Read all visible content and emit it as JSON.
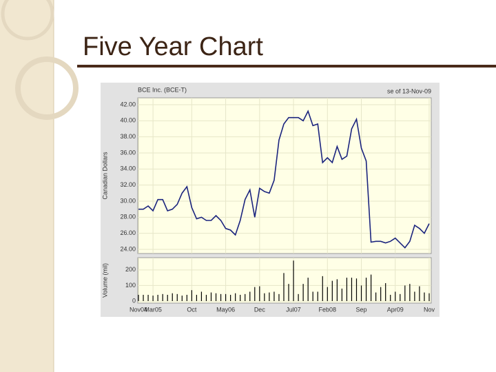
{
  "slide_title": "Five Year Chart",
  "chart_data": [
    {
      "type": "line",
      "title": "BCE Inc. (BCE-T)",
      "subtitle": "se of 13-Nov-09",
      "y_label": "Canadian Dollars",
      "color": "#1a237e",
      "grid": true,
      "ylim": [
        24,
        42
      ],
      "yticks": [
        {
          "value": 24,
          "label": "24.00"
        },
        {
          "value": 26,
          "label": "26.00"
        },
        {
          "value": 28,
          "label": "28.00"
        },
        {
          "value": 30,
          "label": "30.00"
        },
        {
          "value": 32,
          "label": "32.00"
        },
        {
          "value": 34,
          "label": "34.00"
        },
        {
          "value": 36,
          "label": "36.00"
        },
        {
          "value": 38,
          "label": "38.00"
        },
        {
          "value": 40,
          "label": "40.00"
        },
        {
          "value": 42,
          "label": "42.00"
        }
      ],
      "values": [
        29.0,
        29.0,
        29.4,
        28.8,
        30.2,
        30.2,
        28.8,
        29.0,
        29.6,
        31.0,
        31.8,
        29.2,
        27.8,
        28.0,
        27.6,
        27.6,
        28.2,
        27.6,
        26.6,
        26.4,
        25.8,
        27.6,
        30.2,
        31.4,
        28.0,
        31.6,
        31.2,
        31.0,
        32.6,
        37.6,
        39.6,
        40.4,
        40.4,
        40.4,
        40.0,
        41.2,
        39.4,
        39.6,
        34.8,
        35.4,
        34.8,
        36.8,
        35.2,
        35.6,
        39.0,
        40.2,
        36.6,
        35.0,
        24.9,
        25.0,
        25.0,
        24.8,
        25.0,
        25.4,
        24.8,
        24.2,
        25.0,
        27.0,
        26.6,
        26.0,
        27.2
      ]
    },
    {
      "type": "bar",
      "y_label": "Volume (mil)",
      "color": "#000000",
      "grid": true,
      "ylim": [
        0,
        270
      ],
      "yticks": [
        0,
        100,
        200
      ],
      "categories": [
        "Nov04",
        null,
        null,
        "Mar05",
        null,
        null,
        null,
        null,
        null,
        null,
        null,
        "Oct",
        null,
        null,
        null,
        null,
        null,
        null,
        "May06",
        null,
        null,
        null,
        null,
        null,
        null,
        "Dec",
        null,
        null,
        null,
        null,
        null,
        null,
        "Jul07",
        null,
        null,
        null,
        null,
        null,
        null,
        "Feb08",
        null,
        null,
        null,
        null,
        null,
        null,
        "Sep",
        null,
        null,
        null,
        null,
        null,
        null,
        "Apr09",
        null,
        null,
        null,
        null,
        null,
        null,
        "Nov"
      ],
      "values": [
        40,
        40,
        40,
        35,
        40,
        45,
        40,
        50,
        45,
        35,
        40,
        70,
        40,
        60,
        40,
        55,
        50,
        45,
        45,
        40,
        50,
        40,
        45,
        60,
        90,
        95,
        50,
        55,
        60,
        45,
        180,
        110,
        260,
        45,
        110,
        150,
        60,
        60,
        160,
        90,
        130,
        140,
        80,
        150,
        150,
        145,
        100,
        150,
        170,
        55,
        90,
        115,
        40,
        60,
        45,
        100,
        110,
        60,
        95,
        55,
        50
      ]
    }
  ]
}
